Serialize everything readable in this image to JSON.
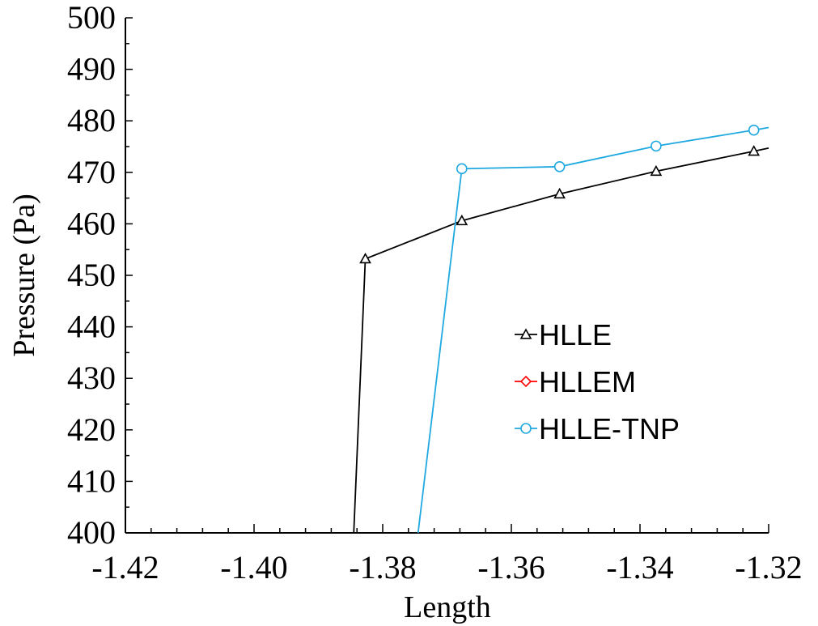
{
  "chart_data": {
    "type": "line",
    "xlabel": "Length",
    "ylabel": "Pressure (Pa)",
    "xlim": [
      -1.42,
      -1.32
    ],
    "ylim": [
      400,
      500
    ],
    "xticks": [
      -1.42,
      -1.4,
      -1.38,
      -1.36,
      -1.34,
      -1.32
    ],
    "xtick_labels": [
      "-1.42",
      "-1.40",
      "-1.38",
      "-1.36",
      "-1.34",
      "-1.32"
    ],
    "yticks": [
      400,
      410,
      420,
      430,
      440,
      450,
      460,
      470,
      480,
      490,
      500
    ],
    "ytick_labels": [
      "400",
      "410",
      "420",
      "430",
      "440",
      "450",
      "460",
      "470",
      "480",
      "490",
      "500"
    ],
    "grid": false,
    "legend_position": "center-right",
    "series": [
      {
        "name": "HLLE",
        "color": "#000000",
        "marker": "triangle",
        "x": [
          -1.3845,
          -1.3827,
          -1.3677,
          -1.3525,
          -1.3375,
          -1.3223,
          -1.32
        ],
        "y": [
          400,
          453.2,
          460.6,
          465.8,
          470.2,
          474.1,
          474.7
        ],
        "marker_indices": [
          1,
          2,
          3,
          4,
          5
        ]
      },
      {
        "name": "HLLEM",
        "color": "#ff0000",
        "marker": "diamond",
        "x": [],
        "y": [],
        "marker_indices": []
      },
      {
        "name": "HLLE-TNP",
        "color": "#1fa9e0",
        "marker": "circle",
        "x": [
          -1.3745,
          -1.3677,
          -1.3525,
          -1.3375,
          -1.3223,
          -1.32
        ],
        "y": [
          400,
          470.7,
          471.1,
          475.1,
          478.2,
          478.7
        ],
        "marker_indices": [
          1,
          2,
          3,
          4
        ]
      }
    ]
  }
}
